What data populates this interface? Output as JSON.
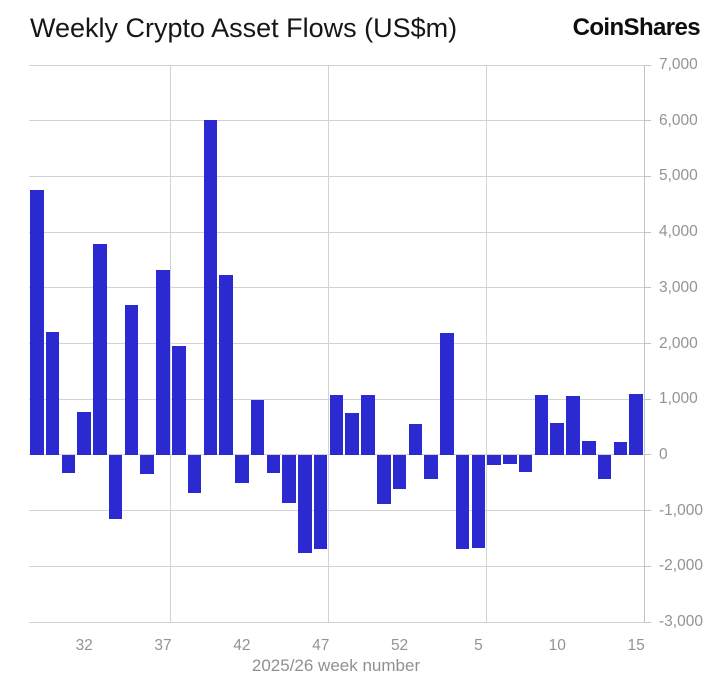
{
  "header": {
    "title": "Weekly Crypto Asset Flows (US$m)",
    "brand": "CoinShares"
  },
  "chart_data": {
    "type": "bar",
    "title": "Weekly Crypto Asset Flows (US$m)",
    "xlabel": "2025/26 week number",
    "ylabel": "",
    "categories": [
      29,
      30,
      31,
      32,
      33,
      34,
      35,
      36,
      37,
      38,
      39,
      40,
      41,
      42,
      43,
      44,
      45,
      46,
      47,
      48,
      49,
      50,
      51,
      52,
      1,
      2,
      3,
      4,
      5,
      6,
      7,
      8,
      9,
      10,
      11,
      12,
      13,
      14,
      15
    ],
    "values": [
      4760,
      2200,
      -330,
      770,
      3790,
      -1150,
      2690,
      -340,
      3320,
      1950,
      -680,
      6020,
      3230,
      -500,
      980,
      -330,
      -870,
      -1760,
      -1690,
      1080,
      760,
      1080,
      -890,
      -620,
      560,
      -440,
      2190,
      -1690,
      -1670,
      -190,
      -170,
      -310,
      1070,
      580,
      1050,
      250,
      -430,
      230,
      1100
    ],
    "ylim": [
      -3000,
      7000
    ],
    "y_tick_labels": [
      "7,000",
      "6,000",
      "5,000",
      "4,000",
      "3,000",
      "2,000",
      "1,000",
      "0",
      "-1,000",
      "-2,000",
      "-3,000"
    ],
    "x_tick_label_weeks": [
      32,
      37,
      42,
      47,
      52,
      5,
      10,
      15
    ],
    "vertical_gridline_after_weeks": [
      37,
      47,
      5
    ],
    "grid": "on",
    "legend_position": "none",
    "colors": {
      "bar": "#2a2ad0",
      "gridline": "#d3d3d3",
      "axis_line": "#c4c4c4",
      "tick_text": "#939393",
      "title_text": "#161616",
      "background": "#ffffff"
    }
  }
}
